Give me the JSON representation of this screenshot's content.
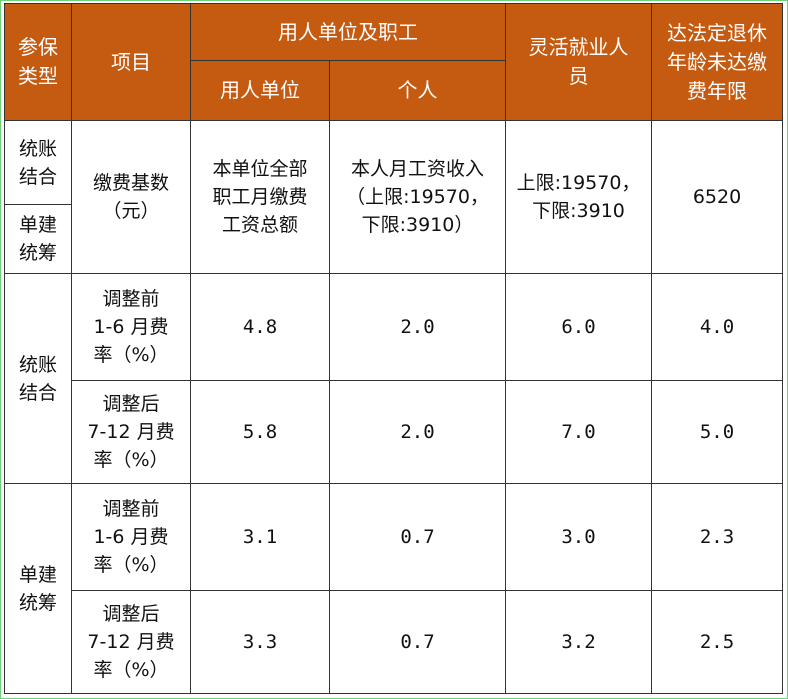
{
  "header": {
    "type_label": "参保\n类型",
    "item_label": "项目",
    "employer_group": "用人单位及职工",
    "employer_label": "用人单位",
    "individual_label": "个人",
    "flexible_label": "灵活就业人\n员",
    "retired_label": "达法定退休\n年龄未达缴\n费年限"
  },
  "base_row": {
    "type_a": "统账\n结合",
    "type_b": "单建\n统筹",
    "item": "缴费基数\n（元）",
    "employer": "本单位全部\n职工月缴费\n工资总额",
    "individual": "本人月工资收入\n（上限:19570，\n下限:3910）",
    "flexible": "上限:19570，\n下限:3910",
    "retired": "6520"
  },
  "groups": [
    {
      "type": "统账\n结合",
      "rows": [
        {
          "item": "调整前\n1-6 月费\n率（%）",
          "employer": "4.8",
          "individual": "2.0",
          "flexible": "6.0",
          "retired": "4.0"
        },
        {
          "item": "调整后\n7-12 月费\n率（%）",
          "employer": "5.8",
          "individual": "2.0",
          "flexible": "7.0",
          "retired": "5.0"
        }
      ]
    },
    {
      "type": "单建\n统筹",
      "rows": [
        {
          "item": "调整前\n1-6 月费\n率（%）",
          "employer": "3.1",
          "individual": "0.7",
          "flexible": "3.0",
          "retired": "2.3"
        },
        {
          "item": "调整后\n7-12 月费\n率（%）",
          "employer": "3.3",
          "individual": "0.7",
          "flexible": "3.2",
          "retired": "2.5"
        }
      ]
    }
  ]
}
